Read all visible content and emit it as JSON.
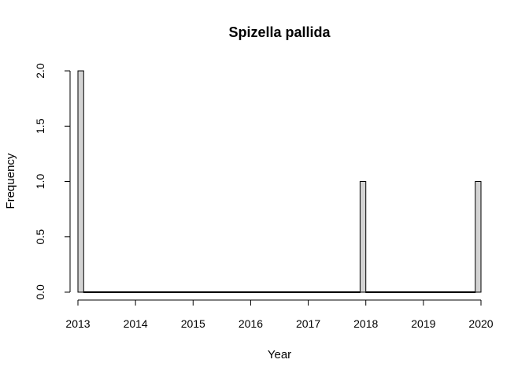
{
  "chart_data": {
    "type": "bar",
    "title": "Spizella pallida",
    "xlabel": "Year",
    "ylabel": "Frequency",
    "x_ticks": [
      "2013",
      "2014",
      "2015",
      "2016",
      "2017",
      "2018",
      "2019",
      "2020"
    ],
    "y_ticks": [
      "0.0",
      "0.5",
      "1.0",
      "1.5",
      "2.0"
    ],
    "xlim": [
      2013,
      2020
    ],
    "ylim": [
      0,
      2
    ],
    "bins": [
      {
        "x": 2013.05,
        "value": 2
      },
      {
        "x": 2017.95,
        "value": 1
      },
      {
        "x": 2019.95,
        "value": 1
      }
    ],
    "bin_width": 0.1,
    "bar_fill": "#d3d3d3",
    "bar_stroke": "#000000",
    "grid": false,
    "legend": "none"
  }
}
